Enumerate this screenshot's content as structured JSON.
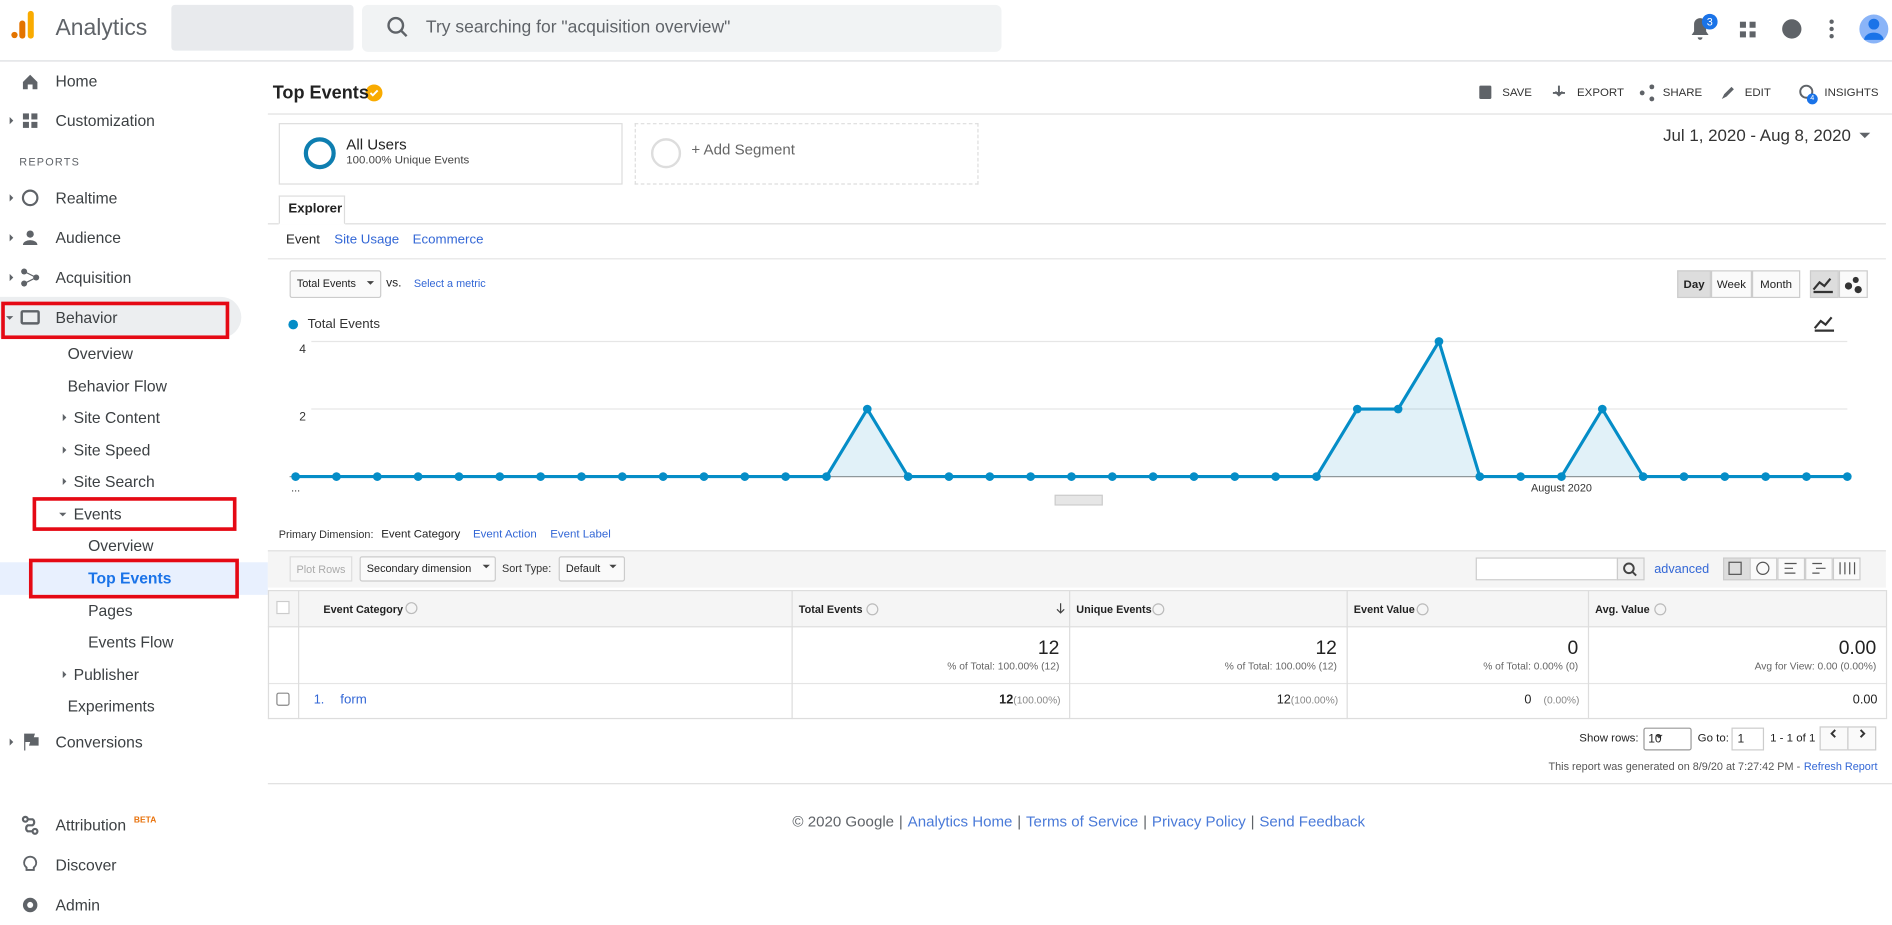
{
  "header": {
    "app_name": "Analytics",
    "search_placeholder": "Try searching for \"acquisition overview\"",
    "notification_count": 3
  },
  "sidebar": {
    "top": [
      "Home",
      "Customization"
    ],
    "section": "REPORTS",
    "reports": [
      "Realtime",
      "Audience",
      "Acquisition",
      "Behavior",
      "Overview",
      "Behavior Flow",
      "Site Content",
      "Site Speed",
      "Site Search",
      "Events",
      "Overview",
      "Top Events",
      "Pages",
      "Events Flow",
      "Publisher",
      "Experiments",
      "Conversions"
    ],
    "bottom": [
      "Attribution",
      "Discover",
      "Admin"
    ],
    "beta": "BETA"
  },
  "report": {
    "title": "Top Events",
    "actions": [
      "SAVE",
      "EXPORT",
      "SHARE",
      "EDIT",
      "INSIGHTS"
    ],
    "insights_count": 4,
    "segment": {
      "name": "All Users",
      "detail": "100.00% Unique Events"
    },
    "add_segment": "+ Add Segment",
    "date_range": "Jul 1, 2020 - Aug 8, 2020",
    "tab": "Explorer",
    "subtabs": [
      "Event",
      "Site Usage",
      "Ecommerce"
    ],
    "metric": "Total Events",
    "vs": "vs.",
    "select_metric": "Select a metric",
    "granularity": [
      "Day",
      "Week",
      "Month"
    ]
  },
  "chart_data": {
    "type": "line",
    "categories": [
      "...",
      null,
      null,
      null,
      null,
      null,
      null,
      null,
      null,
      null,
      null,
      null,
      null,
      null,
      null,
      null,
      null,
      null,
      null,
      null,
      null,
      null,
      null,
      null,
      null,
      null,
      null,
      null,
      null,
      null,
      null,
      "August 2020",
      null,
      null,
      null,
      null,
      null,
      null,
      null
    ],
    "series": [
      {
        "name": "Total Events",
        "color": "#058dc7",
        "values": [
          0,
          0,
          0,
          0,
          0,
          0,
          0,
          0,
          0,
          0,
          0,
          0,
          0,
          0,
          2,
          0,
          0,
          0,
          0,
          0,
          0,
          0,
          0,
          0,
          0,
          0,
          2,
          2,
          4,
          0,
          0,
          0,
          2,
          0,
          0,
          0,
          0,
          0,
          0
        ]
      }
    ],
    "ylim": [
      0,
      4
    ],
    "yticks": [
      2,
      4
    ],
    "grid": true
  },
  "table": {
    "primary_dimension_label": "Primary Dimension:",
    "dimensions": [
      "Event Category",
      "Event Action",
      "Event Label"
    ],
    "plot_rows": "Plot Rows",
    "secondary_dimension": "Secondary dimension",
    "sort_type_label": "Sort Type:",
    "sort_type": "Default",
    "advanced": "advanced",
    "columns": [
      "Event Category",
      "Total Events",
      "Unique Events",
      "Event Value",
      "Avg. Value"
    ],
    "totals": [
      {
        "value": "12",
        "detail": "% of Total: 100.00% (12)"
      },
      {
        "value": "12",
        "detail": "% of Total: 100.00% (12)"
      },
      {
        "value": "0",
        "detail": "% of Total: 0.00% (0)"
      },
      {
        "value": "0.00",
        "detail": "Avg for View: 0.00 (0.00%)"
      }
    ],
    "rows": [
      {
        "index": "1.",
        "category": "form",
        "cells": [
          {
            "value": "12",
            "share": "(100.00%)"
          },
          {
            "value": "12",
            "share": "(100.00%)"
          },
          {
            "value": "0",
            "share": "(0.00%)"
          },
          {
            "value": "0.00"
          }
        ]
      }
    ],
    "pagination": {
      "show_rows_label": "Show rows:",
      "show_rows": "10",
      "go_to_label": "Go to:",
      "go_to": "1",
      "range": "1 - 1 of 1"
    },
    "generated": "This report was generated on 8/9/20 at 7:27:42 PM -",
    "refresh": "Refresh Report"
  },
  "footer": {
    "copyright": "© 2020 Google",
    "separator": "|",
    "links": [
      "Analytics Home",
      "Terms of Service",
      "Privacy Policy",
      "Send Feedback"
    ]
  }
}
